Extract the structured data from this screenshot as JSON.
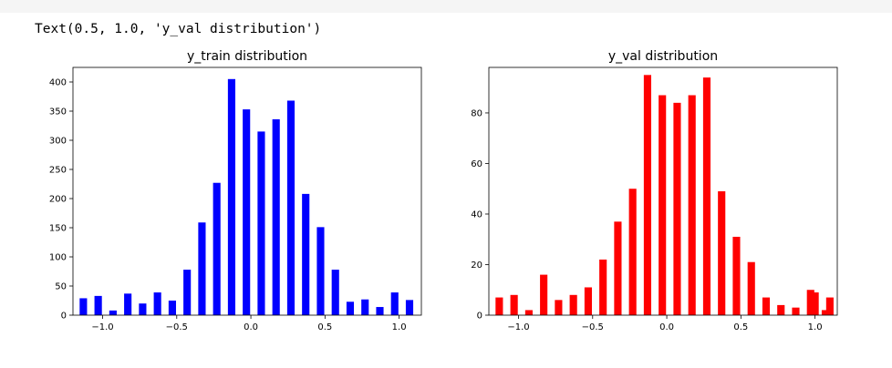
{
  "output_line": "Text(0.5, 1.0, 'y_val distribution')",
  "chart_data": [
    {
      "type": "bar",
      "title": "y_train distribution",
      "xlabel": "",
      "ylabel": "",
      "color": "#0000ff",
      "xlim": [
        -1.2,
        1.15
      ],
      "ylim": [
        0,
        425
      ],
      "bar_width": 0.05,
      "xticks": [
        -1.0,
        -0.5,
        0.0,
        0.5,
        1.0
      ],
      "xtick_labels": [
        "−1.0",
        "−0.5",
        "0.0",
        "0.5",
        "1.0"
      ],
      "yticks": [
        0,
        50,
        100,
        150,
        200,
        250,
        300,
        350,
        400
      ],
      "ytick_labels": [
        "0",
        "50",
        "100",
        "150",
        "200",
        "250",
        "300",
        "350",
        "400"
      ],
      "x": [
        -1.13,
        -1.03,
        -0.93,
        -0.83,
        -0.73,
        -0.63,
        -0.53,
        -0.43,
        -0.33,
        -0.23,
        -0.13,
        -0.03,
        0.07,
        0.17,
        0.27,
        0.37,
        0.47,
        0.57,
        0.67,
        0.77,
        0.87,
        0.97,
        1.07
      ],
      "values": [
        29,
        33,
        8,
        37,
        20,
        39,
        25,
        78,
        159,
        227,
        405,
        353,
        315,
        336,
        368,
        208,
        151,
        78,
        23,
        27,
        14,
        39,
        26
      ],
      "extra": {
        "x": [
          1.07
        ],
        "values": [
          26
        ]
      }
    },
    {
      "type": "bar",
      "title": "y_val distribution",
      "xlabel": "",
      "ylabel": "",
      "color": "#ff0000",
      "xlim": [
        -1.2,
        1.15
      ],
      "ylim": [
        0,
        98
      ],
      "bar_width": 0.05,
      "xticks": [
        -1.0,
        -0.5,
        0.0,
        0.5,
        1.0
      ],
      "xtick_labels": [
        "−1.0",
        "−0.5",
        "0.0",
        "0.5",
        "1.0"
      ],
      "yticks": [
        0,
        20,
        40,
        60,
        80
      ],
      "ytick_labels": [
        "0",
        "20",
        "40",
        "60",
        "80"
      ],
      "x": [
        -1.13,
        -1.03,
        -0.93,
        -0.83,
        -0.73,
        -0.63,
        -0.53,
        -0.43,
        -0.33,
        -0.23,
        -0.13,
        -0.03,
        0.07,
        0.17,
        0.27,
        0.37,
        0.47,
        0.57,
        0.67,
        0.77,
        0.87,
        0.97,
        1.07
      ],
      "values": [
        7,
        8,
        2,
        16,
        6,
        8,
        11,
        22,
        37,
        50,
        95,
        87,
        84,
        87,
        94,
        49,
        31,
        21,
        7,
        4,
        3,
        10,
        2
      ],
      "extra": {
        "x": [
          1.0,
          1.1
        ],
        "values": [
          9,
          7
        ]
      }
    }
  ]
}
